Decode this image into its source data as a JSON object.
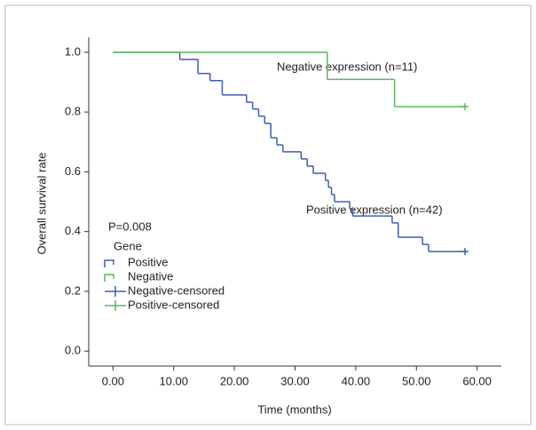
{
  "chart_data": {
    "type": "step",
    "y_label": "Overall survival rate",
    "x_label": "Time (months)",
    "annotations": [
      "Negative expression (n=11)",
      "Positive expression (n=42)",
      "P=0.008"
    ],
    "legend_title": "Gene",
    "xlim": [
      -4,
      64
    ],
    "ylim": [
      -0.05,
      1.05
    ],
    "xticks": [
      {
        "value": 0,
        "label": "0.00"
      },
      {
        "value": 10,
        "label": "10.00"
      },
      {
        "value": 20,
        "label": "20.00"
      },
      {
        "value": 30,
        "label": "30.00"
      },
      {
        "value": 40,
        "label": "40.00"
      },
      {
        "value": 50,
        "label": "50.00"
      },
      {
        "value": 60,
        "label": "60.00"
      }
    ],
    "yticks": [
      {
        "value": 0,
        "label": "0.0"
      },
      {
        "value": 0.2,
        "label": "0.2"
      },
      {
        "value": 0.4,
        "label": "0.4"
      },
      {
        "value": 0.6,
        "label": "0.6"
      },
      {
        "value": 0.8,
        "label": "0.8"
      },
      {
        "value": 1,
        "label": "1.0"
      }
    ],
    "series": [
      {
        "name": "Positive",
        "color": "#3a5fb0",
        "x": [
          0,
          11,
          14,
          16,
          18,
          22,
          23,
          24,
          25,
          26,
          27,
          28,
          31,
          32,
          33,
          35,
          35.5,
          36,
          36.5,
          39,
          39.5,
          46,
          47,
          51,
          52,
          58
        ],
        "values": [
          1.0,
          0.976,
          0.929,
          0.905,
          0.857,
          0.833,
          0.81,
          0.786,
          0.762,
          0.714,
          0.69,
          0.667,
          0.643,
          0.619,
          0.595,
          0.571,
          0.548,
          0.524,
          0.5,
          0.476,
          0.452,
          0.429,
          0.381,
          0.357,
          0.333,
          0.333
        ]
      },
      {
        "name": "Negative",
        "color": "#5cb85c",
        "x": [
          0,
          35.3,
          46.4,
          58
        ],
        "values": [
          1.0,
          0.909,
          0.818,
          0.818
        ]
      }
    ],
    "censored": [
      {
        "name": "Negative-censored",
        "color": "#3a5fb0",
        "x": [
          58
        ],
        "values": [
          0.333
        ]
      },
      {
        "name": "Positive-censored",
        "color": "#5cb85c",
        "x": [
          58
        ],
        "values": [
          0.818
        ]
      }
    ]
  }
}
